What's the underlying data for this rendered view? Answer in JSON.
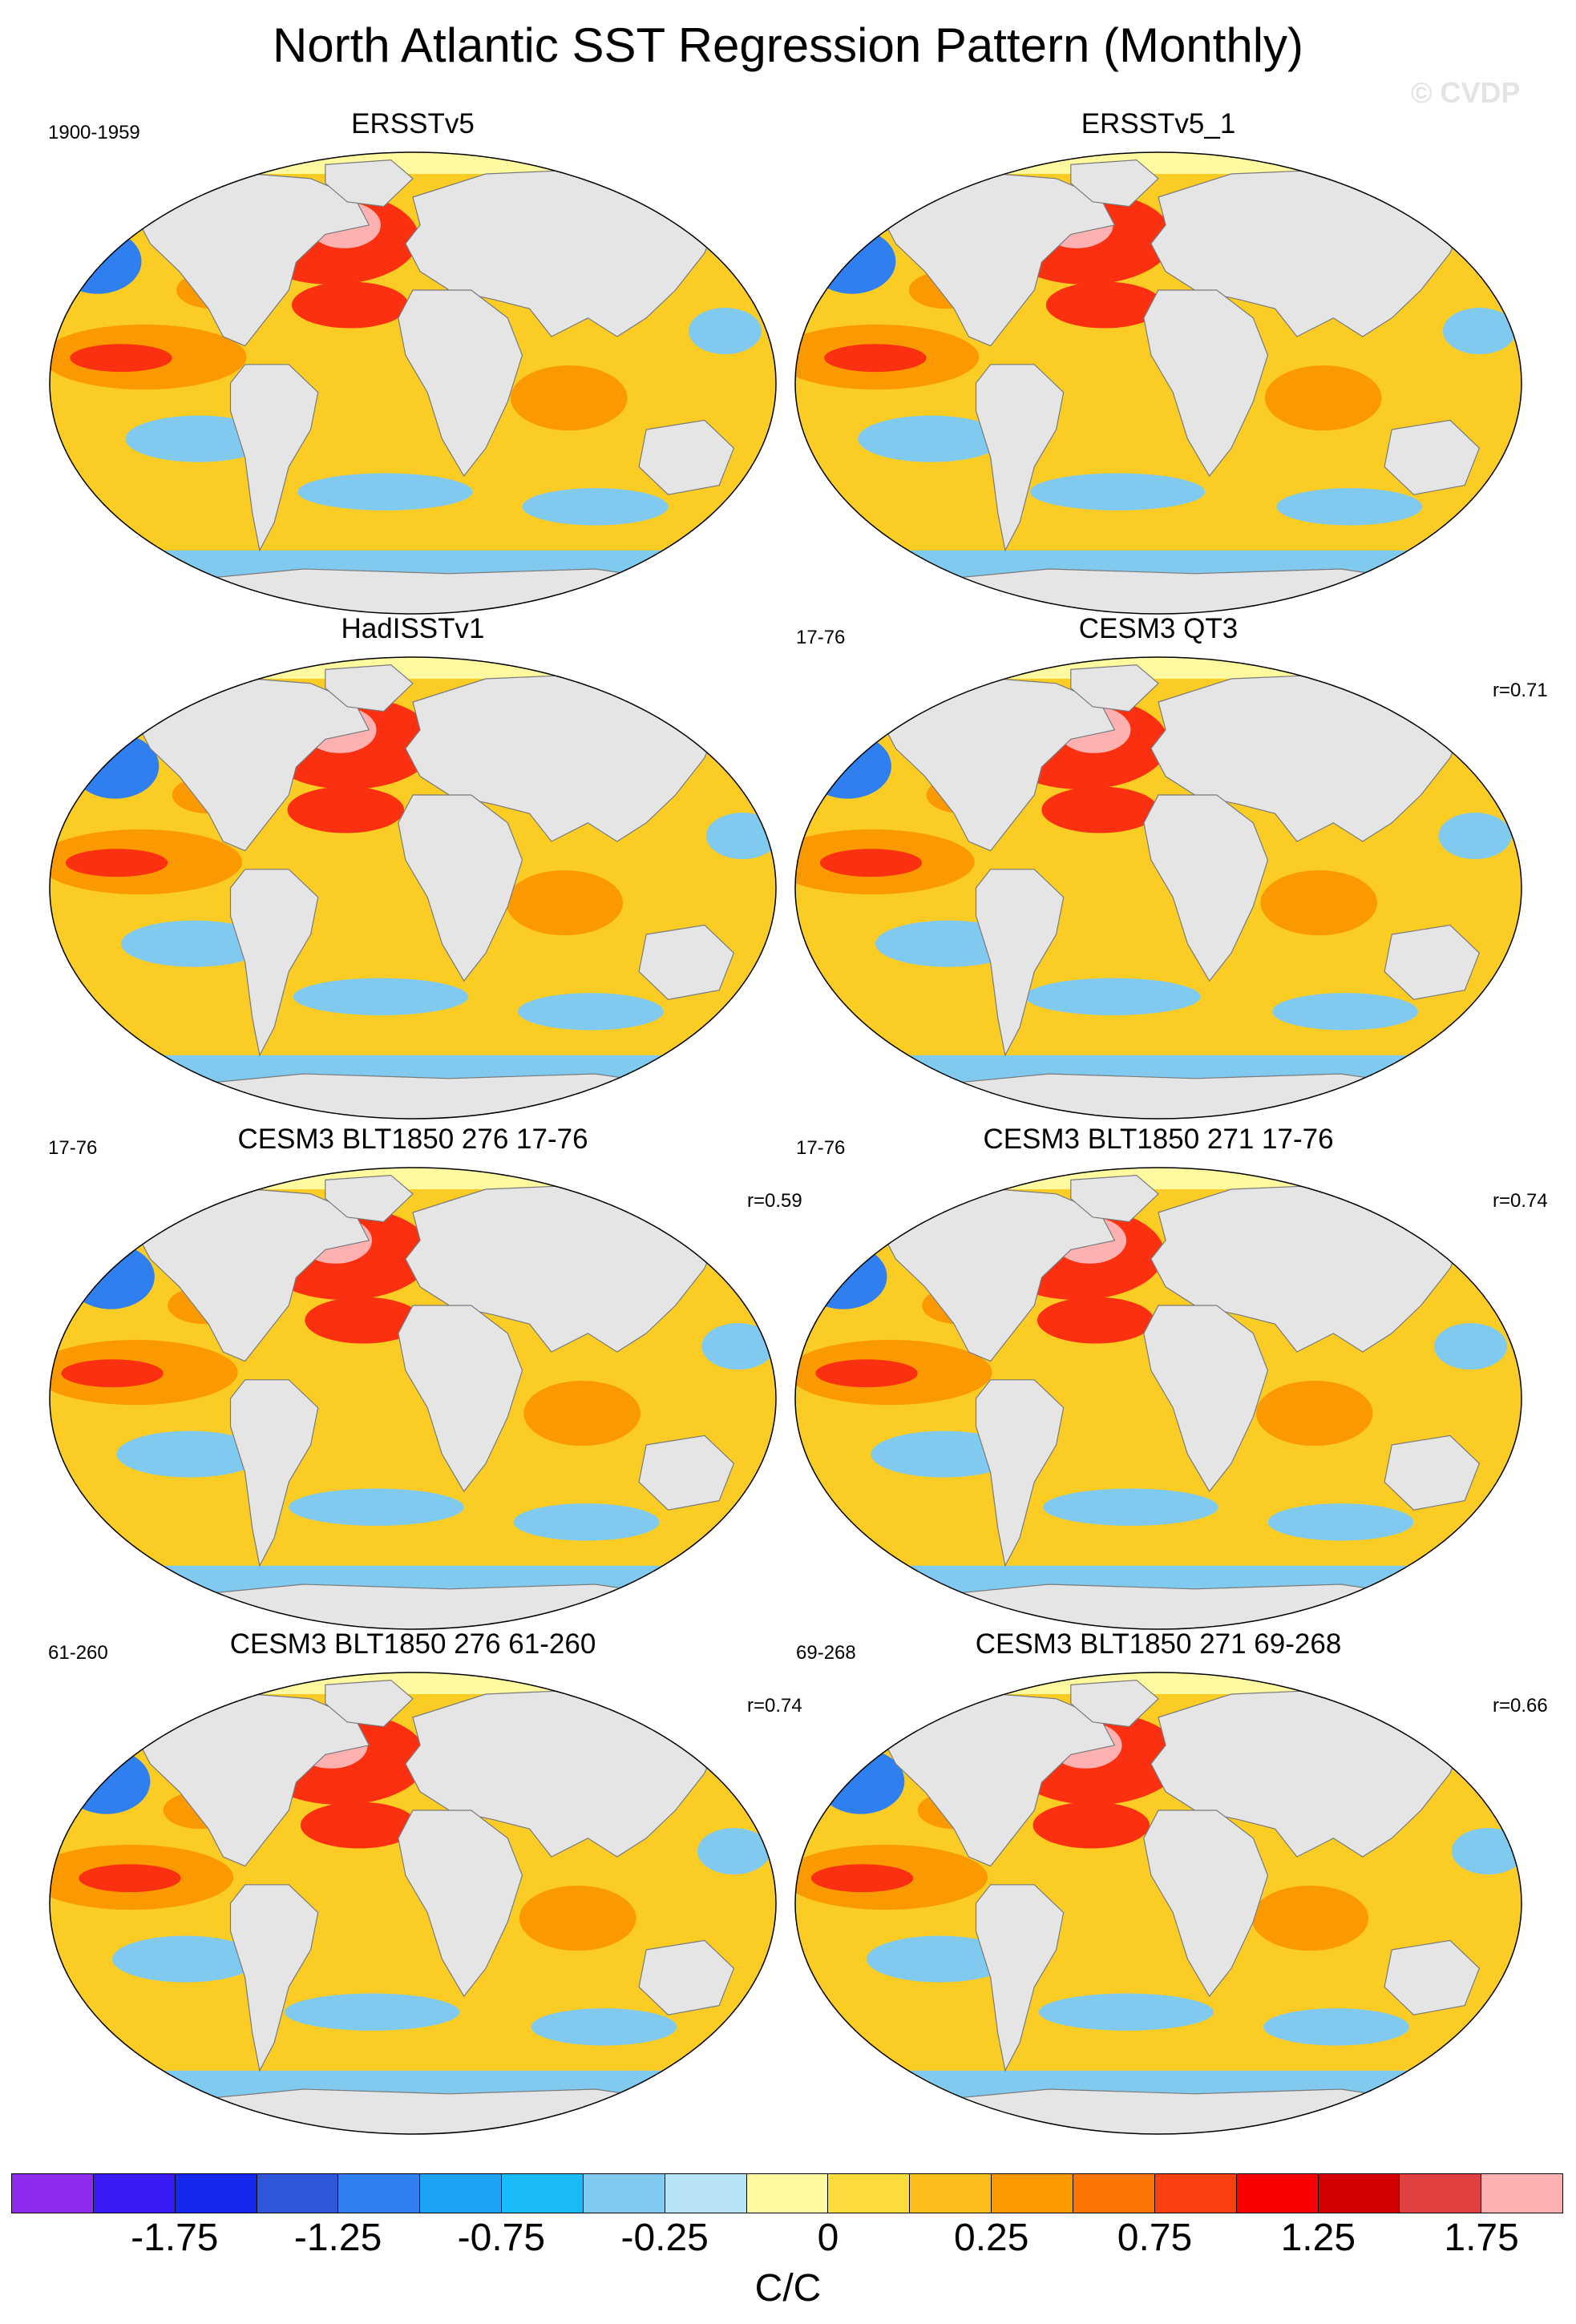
{
  "title": "North Atlantic SST Regression Pattern (Monthly)",
  "watermark": "© CVDP",
  "panels": [
    {
      "title": "ERSSTv5",
      "period": "1900-1959",
      "r": ""
    },
    {
      "title": "ERSSTv5_1",
      "period": "",
      "r": ""
    },
    {
      "title": "HadISSTv1",
      "period": "",
      "r": ""
    },
    {
      "title": "CESM3 QT3",
      "period": "17-76",
      "r": "r=0.71"
    },
    {
      "title": "CESM3 BLT1850 276 17-76",
      "period": "17-76",
      "r": "r=0.59"
    },
    {
      "title": "CESM3 BLT1850 271 17-76",
      "period": "17-76",
      "r": "r=0.74"
    },
    {
      "title": "CESM3 BLT1850 276 61-260",
      "period": "61-260",
      "r": "r=0.74"
    },
    {
      "title": "CESM3 BLT1850 271 69-268",
      "period": "69-268",
      "r": "r=0.66"
    }
  ],
  "colorbar": {
    "colors": [
      "#8f2bef",
      "#3a1bf6",
      "#1428f0",
      "#2f57da",
      "#2f7ff0",
      "#1ca3f6",
      "#19baf8",
      "#80caf0",
      "#b6e3f8",
      "#fff9a0",
      "#fbdc3c",
      "#fbbd19",
      "#fb9a00",
      "#fb7504",
      "#fb4010",
      "#fb0000",
      "#d40000",
      "#e04040",
      "#ffb0b0"
    ],
    "labels": [
      "-1.75",
      "-1.25",
      "-0.75",
      "-0.25",
      "0",
      "0.25",
      "0.75",
      "1.25",
      "1.75"
    ],
    "units": "C/C"
  },
  "map_colors": {
    "ocean": "#fbcc24",
    "land": "#e5e5e5",
    "warm": "#fb9a00",
    "hot": "#fb3010",
    "hottest": "#ffb0b0",
    "cool": "#80caf0",
    "cold": "#2f7ff0",
    "polar": "#fff9a0"
  }
}
